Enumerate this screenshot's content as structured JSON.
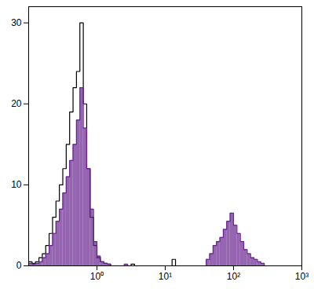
{
  "chart_data": {
    "type": "histogram",
    "log": "x",
    "bins": [
      0.1,
      0.1122,
      0.1259,
      0.1413,
      0.1585,
      0.1778,
      0.1995,
      0.2239,
      0.2512,
      0.2818,
      0.3162,
      0.3548,
      0.3981,
      0.4467,
      0.5012,
      0.5623,
      0.631,
      0.7079,
      0.7943,
      0.8913,
      1,
      1.122,
      1.259,
      1.413,
      1.585,
      1.778,
      1.995,
      2.239,
      2.512,
      2.818,
      3.162,
      3.548,
      3.981,
      4.467,
      5.012,
      5.623,
      6.31,
      7.079,
      7.943,
      8.913,
      10,
      11.22,
      12.59,
      14.13,
      15.85,
      17.78,
      19.95,
      22.39,
      25.12,
      28.18,
      31.62,
      35.48,
      39.81,
      44.67,
      50.12,
      56.23,
      63.1,
      70.79,
      79.43,
      89.13,
      100,
      112.2,
      125.9,
      141.3,
      158.5,
      177.8,
      199.5,
      223.9,
      251.2,
      281.8,
      316.2,
      354.8,
      398.1,
      446.7,
      501.2,
      562.3,
      631,
      707.9,
      794.3,
      891.3,
      1000
    ],
    "series": [
      {
        "color": "#000000",
        "type": "line",
        "values": [
          0.5,
          0.3,
          0.5,
          1,
          1.5,
          2.5,
          4,
          6,
          8,
          10,
          12,
          15,
          19,
          22,
          24,
          30,
          20,
          12,
          6,
          2.5,
          1,
          0.5,
          0.3,
          0.2,
          0,
          0,
          0,
          0,
          0,
          0,
          0.2,
          0,
          0,
          0,
          0,
          0,
          0,
          0,
          0,
          0,
          0,
          0,
          0.8,
          0,
          0,
          0,
          0,
          0,
          0,
          0,
          0,
          0,
          0,
          0,
          0,
          0,
          0,
          0,
          0,
          0,
          0,
          0,
          0,
          0,
          0,
          0,
          0,
          0,
          0,
          0,
          0,
          0,
          0,
          0,
          0,
          0,
          0,
          0,
          0,
          0
        ]
      },
      {
        "color": "#6a2390",
        "type": "area",
        "values": [
          0.3,
          0.2,
          0.3,
          0.5,
          1,
          1.5,
          2.5,
          4,
          5.5,
          7,
          9,
          11,
          13,
          15,
          18,
          22,
          17,
          12,
          7,
          3,
          1.2,
          0.5,
          0.3,
          0.2,
          0,
          0,
          0,
          0,
          0.2,
          0,
          0,
          0,
          0,
          0,
          0,
          0,
          0,
          0,
          0,
          0,
          0,
          0,
          0,
          0,
          0,
          0,
          0,
          0,
          0,
          0,
          0,
          0,
          0.8,
          1.5,
          2.5,
          3,
          3.5,
          4.5,
          5.5,
          6.5,
          5,
          4,
          3,
          2,
          1.5,
          1,
          0.8,
          0.5,
          0.3,
          0,
          0,
          0,
          0,
          0,
          0,
          0,
          0,
          0,
          0,
          0
        ]
      }
    ],
    "xlim": [
      0.1,
      1000
    ],
    "ylim": [
      0,
      32
    ],
    "xticks": [
      {
        "value": 1,
        "label": "10⁰"
      },
      {
        "value": 10,
        "label": "10¹"
      },
      {
        "value": 100,
        "label": "10²"
      },
      {
        "value": 1000,
        "label": "10³"
      }
    ],
    "yticks": [
      0,
      10,
      20,
      30
    ]
  }
}
